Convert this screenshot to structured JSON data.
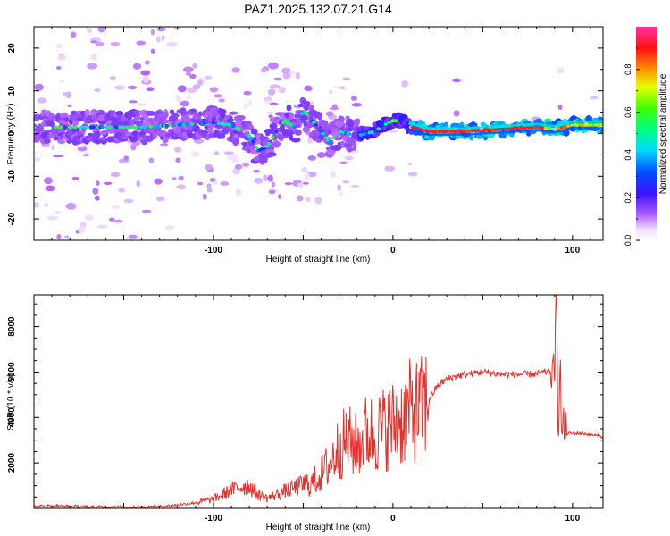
{
  "figure": {
    "title": "PAZ1.2025.132.07.21.G14"
  },
  "chart_data": [
    {
      "type": "heatmap",
      "xlabel": "Height of straight line (km)",
      "ylabel": "Frequency (Hz)",
      "xlim": [
        -200,
        117
      ],
      "ylim": [
        -25,
        25
      ],
      "xticks": [
        -100,
        0,
        100
      ],
      "yticks": [
        -20,
        -10,
        0,
        10,
        20
      ],
      "colorbar": {
        "label": "Normalized spectral amplitude",
        "range": [
          0,
          1
        ],
        "ticks": [
          "0.0",
          "0.2",
          "0.4",
          "0.6",
          "0.8"
        ],
        "colormap": "rainbow (violet-blue-cyan-green-yellow-orange-red-magenta)",
        "placement": "right"
      },
      "ridge": {
        "x": [
          -200,
          -180,
          -160,
          -140,
          -120,
          -100,
          -90,
          -80,
          -75,
          -70,
          -65,
          -60,
          -55,
          -50,
          -45,
          -40,
          -35,
          -30,
          -25,
          -20,
          -15,
          -10,
          -5,
          0,
          5,
          10,
          20,
          40,
          60,
          80,
          90,
          100,
          117
        ],
        "y": [
          1.5,
          1.5,
          1.5,
          1.5,
          2.0,
          2.5,
          2.0,
          -0.5,
          -4.0,
          -3.0,
          0.5,
          3.0,
          1.5,
          5.5,
          3.0,
          0.5,
          -2.0,
          0.5,
          0.0,
          -0.5,
          0.0,
          0.5,
          2.0,
          3.0,
          3.0,
          1.5,
          0.5,
          0.5,
          1.0,
          1.5,
          1.0,
          2.0,
          2.0
        ]
      }
    },
    {
      "type": "line",
      "xlabel": "Height of straight line (km)",
      "ylabel": "SNR (10 * v/v)",
      "xlim": [
        -200,
        117
      ],
      "ylim": [
        0,
        9400
      ],
      "xticks": [
        -100,
        0,
        100
      ],
      "yticks": [
        2000,
        4000,
        6000,
        8000
      ],
      "color": "#e8302a",
      "series": [
        {
          "x": [
            -200,
            -190,
            -180,
            -170,
            -160,
            -150,
            -140,
            -130,
            -120,
            -110,
            -100,
            -95,
            -90,
            -85,
            -80,
            -75,
            -70,
            -65,
            -60,
            -55,
            -50,
            -45,
            -40,
            -35,
            -30,
            -25,
            -20,
            -15,
            -10,
            -5,
            0,
            5,
            10,
            15,
            20,
            25,
            30,
            35,
            40,
            50,
            60,
            70,
            80,
            85,
            88,
            90,
            91,
            92,
            93,
            94,
            95,
            96,
            97,
            100,
            105,
            110,
            117
          ],
          "y": [
            80,
            120,
            90,
            70,
            60,
            60,
            50,
            80,
            150,
            250,
            400,
            600,
            800,
            950,
            1000,
            600,
            450,
            600,
            750,
            900,
            1050,
            1100,
            1500,
            2000,
            2700,
            3000,
            2700,
            3300,
            3300,
            3500,
            3700,
            3900,
            4300,
            4300,
            4800,
            5400,
            5700,
            5800,
            5900,
            6000,
            5900,
            5900,
            5900,
            6000,
            6000,
            5900,
            9400,
            3000,
            7000,
            3200,
            3600,
            3400,
            3300,
            3300,
            3300,
            3250,
            3150
          ]
        }
      ]
    }
  ]
}
